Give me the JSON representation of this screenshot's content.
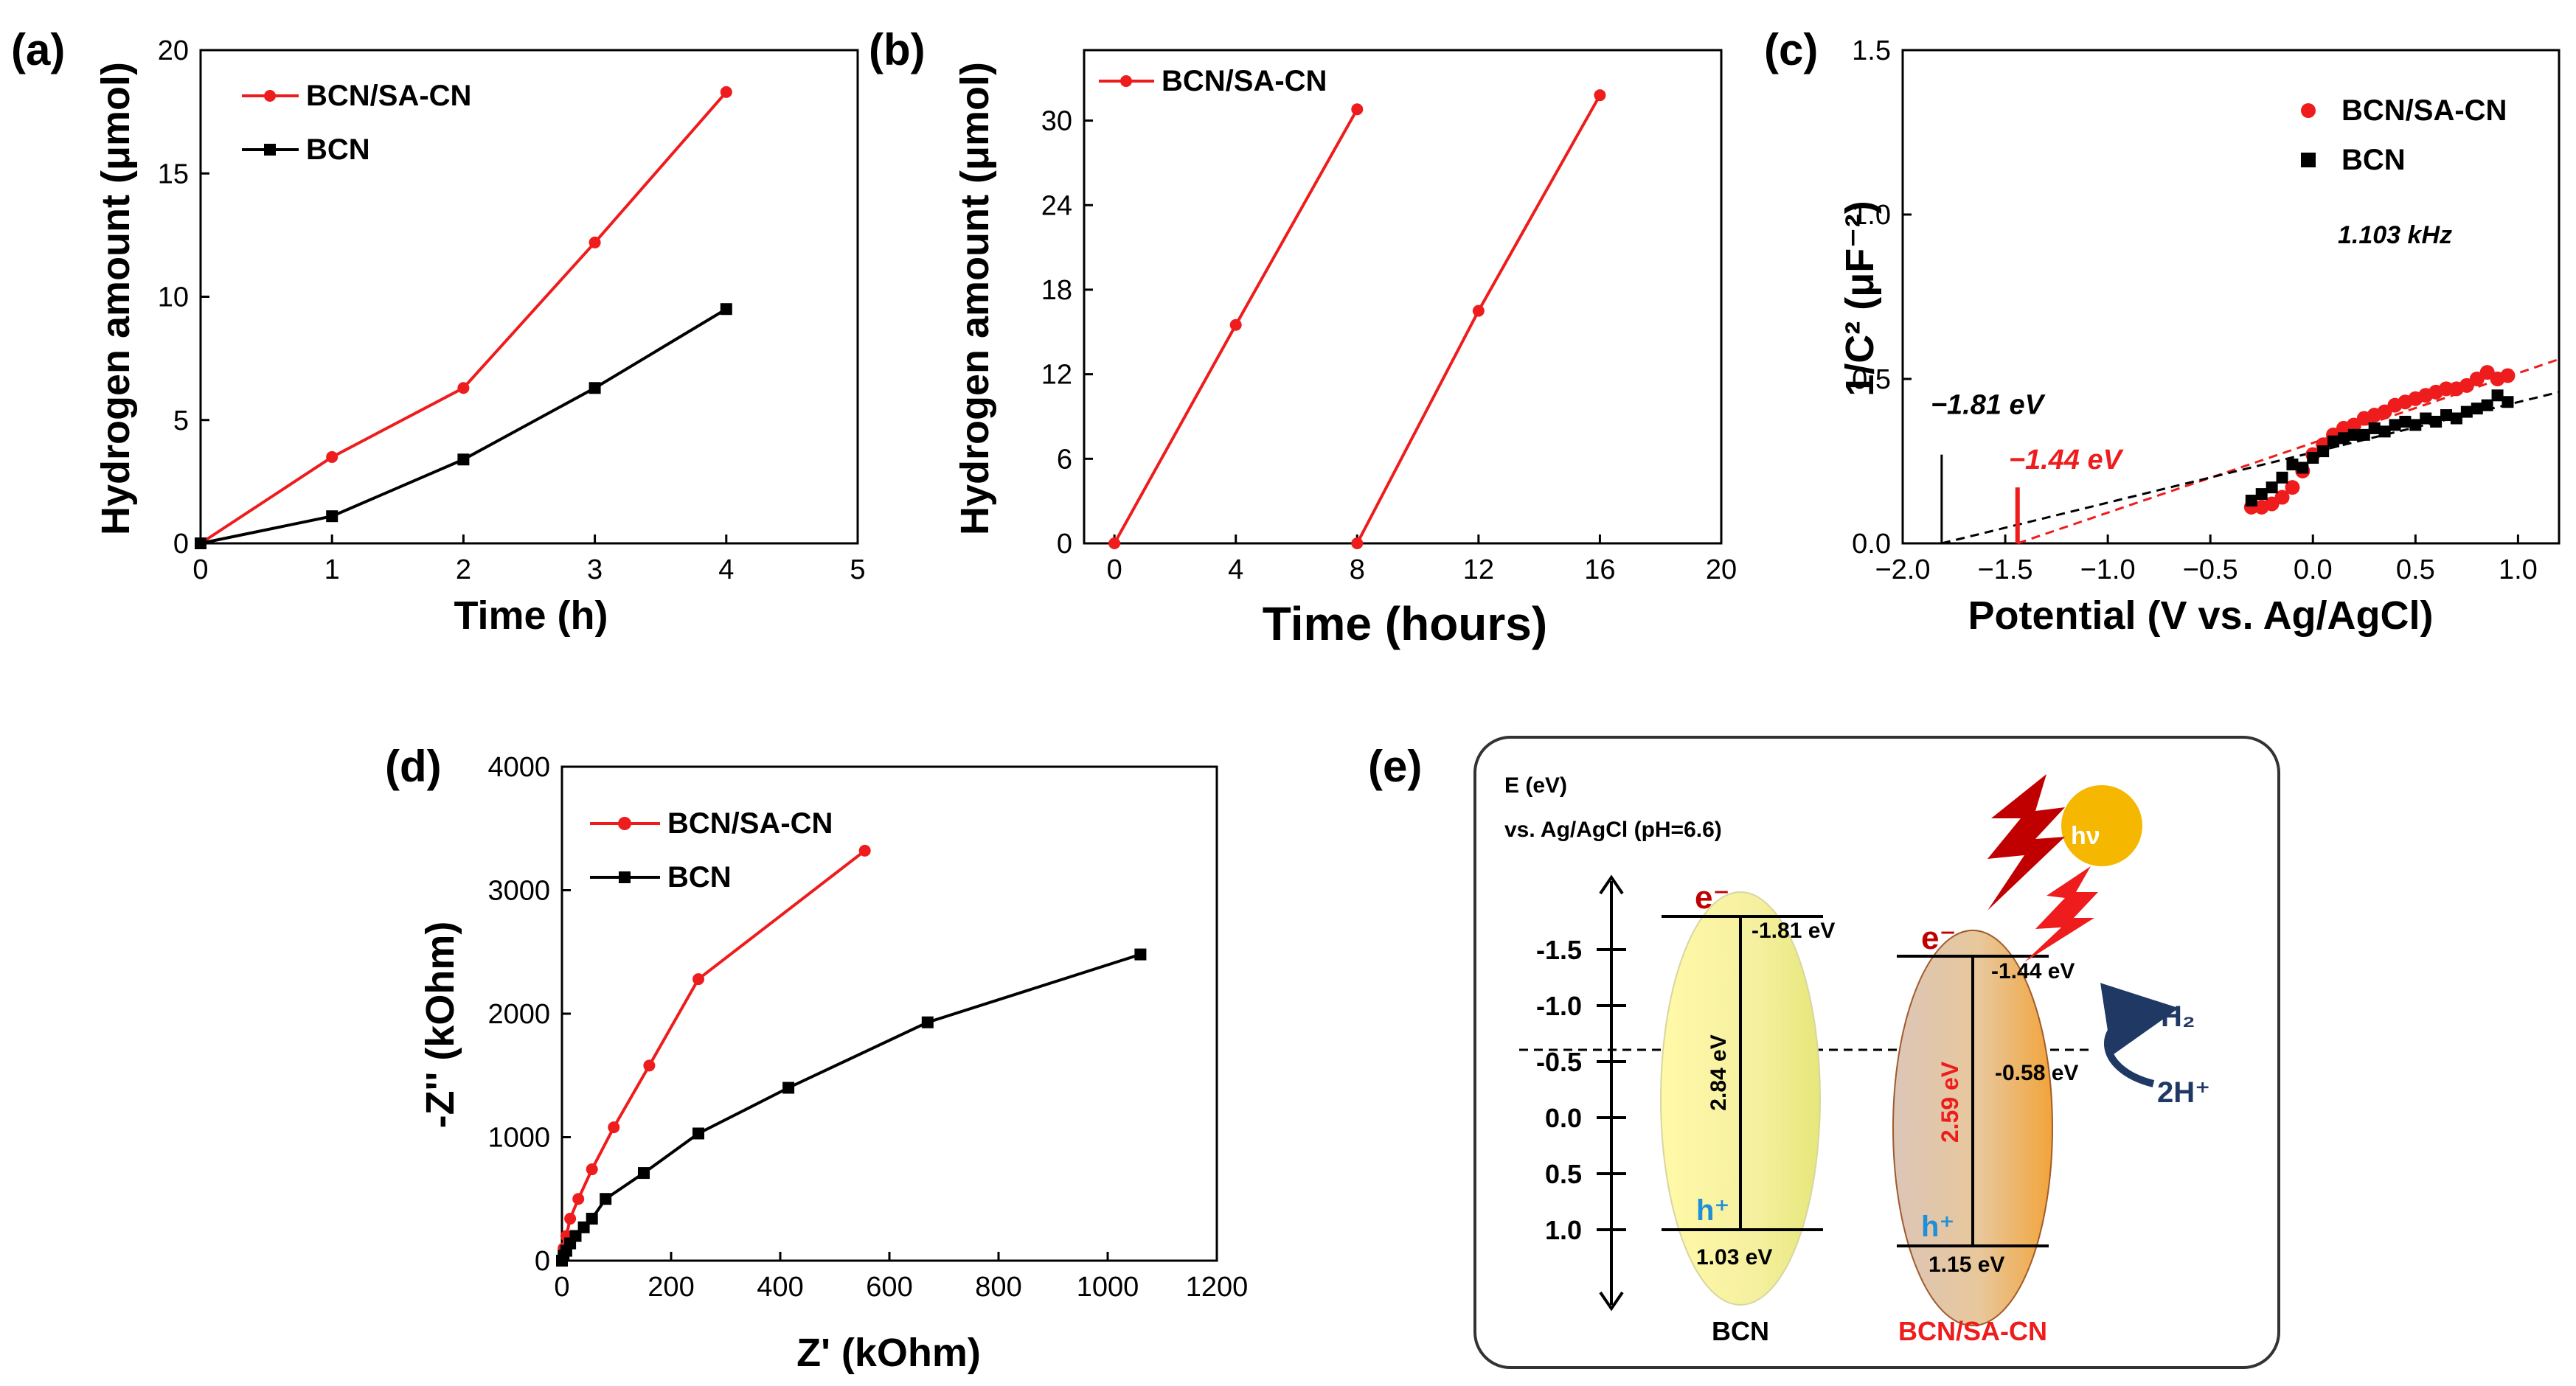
{
  "chart_data": [
    {
      "id": "a",
      "panel_label": "(a)",
      "type": "line",
      "xlabel": "Time (h)",
      "ylabel": "Hydrogen amount (μmol)",
      "xlim": [
        0,
        5
      ],
      "ylim": [
        0,
        20
      ],
      "xticks": [
        0,
        1,
        2,
        3,
        4,
        5
      ],
      "yticks": [
        0,
        5,
        10,
        15,
        20
      ],
      "legend_position": "top-left",
      "series": [
        {
          "name": "BCN/SA-CN",
          "color": "#ee1c1c",
          "marker": "circle",
          "x": [
            0,
            1,
            2,
            3,
            4
          ],
          "y": [
            0,
            3.5,
            6.3,
            12.2,
            18.3
          ]
        },
        {
          "name": "BCN",
          "color": "#000000",
          "marker": "square",
          "x": [
            0,
            1,
            2,
            3,
            4
          ],
          "y": [
            0,
            1.1,
            3.4,
            6.3,
            9.5
          ]
        }
      ]
    },
    {
      "id": "b",
      "panel_label": "(b)",
      "type": "line",
      "xlabel": "Time (hours)",
      "ylabel": "Hydrogen amount (μmol)",
      "xlim": [
        -1,
        20
      ],
      "ylim": [
        0,
        35
      ],
      "xticks": [
        0,
        4,
        8,
        12,
        16,
        20
      ],
      "yticks": [
        0,
        6,
        12,
        18,
        24,
        30
      ],
      "legend_position": "top-left",
      "series": [
        {
          "name": "BCN/SA-CN",
          "color": "#ee1c1c",
          "marker": "circle",
          "segments": [
            {
              "x": [
                0,
                4,
                8
              ],
              "y": [
                0,
                15.5,
                30.8
              ]
            },
            {
              "x": [
                8,
                12,
                16
              ],
              "y": [
                0,
                16.5,
                31.8
              ]
            }
          ]
        }
      ]
    },
    {
      "id": "c",
      "panel_label": "(c)",
      "type": "scatter",
      "xlabel": "Potential (V vs. Ag/AgCl)",
      "ylabel": "1/C² (μF⁻²)",
      "xlim": [
        -2.0,
        1.2
      ],
      "ylim": [
        0,
        1.5
      ],
      "xticks": [
        -2.0,
        -1.5,
        -1.0,
        -0.5,
        0.0,
        0.5,
        1.0
      ],
      "yticks": [
        0.0,
        0.5,
        1.0,
        1.5
      ],
      "legend_position": "top-right",
      "frequency_note": "1.103 kHz",
      "series": [
        {
          "name": "BCN/SA-CN",
          "color": "#ee1c1c",
          "marker": "circle",
          "x": [
            -0.3,
            -0.25,
            -0.2,
            -0.15,
            -0.1,
            -0.05,
            0.0,
            0.05,
            0.1,
            0.15,
            0.2,
            0.25,
            0.3,
            0.35,
            0.4,
            0.45,
            0.5,
            0.55,
            0.6,
            0.65,
            0.7,
            0.75,
            0.8,
            0.85,
            0.9,
            0.95
          ],
          "y": [
            0.11,
            0.11,
            0.12,
            0.14,
            0.17,
            0.22,
            0.27,
            0.3,
            0.33,
            0.35,
            0.36,
            0.38,
            0.39,
            0.4,
            0.42,
            0.43,
            0.44,
            0.45,
            0.46,
            0.47,
            0.47,
            0.48,
            0.5,
            0.52,
            0.5,
            0.51
          ]
        },
        {
          "name": "BCN",
          "color": "#000000",
          "marker": "square",
          "x": [
            -0.3,
            -0.25,
            -0.2,
            -0.15,
            -0.1,
            -0.05,
            0.0,
            0.05,
            0.1,
            0.15,
            0.2,
            0.25,
            0.3,
            0.35,
            0.4,
            0.45,
            0.5,
            0.55,
            0.6,
            0.65,
            0.7,
            0.75,
            0.8,
            0.85,
            0.9,
            0.95
          ],
          "y": [
            0.13,
            0.15,
            0.17,
            0.2,
            0.24,
            0.23,
            0.26,
            0.28,
            0.31,
            0.32,
            0.33,
            0.33,
            0.35,
            0.34,
            0.36,
            0.37,
            0.36,
            0.38,
            0.37,
            0.39,
            0.38,
            0.4,
            0.41,
            0.42,
            0.45,
            0.43
          ]
        }
      ],
      "fits": [
        {
          "name": "BCN/SA-CN fit",
          "color": "#ee1c1c",
          "x": [
            -1.44,
            1.2
          ],
          "y": [
            0,
            0.56
          ]
        },
        {
          "name": "BCN fit",
          "color": "#000000",
          "x": [
            -1.81,
            1.2
          ],
          "y": [
            0,
            0.46
          ]
        }
      ],
      "markers": [
        {
          "x": -1.81,
          "label": "-1.81 eV",
          "color": "#000000",
          "height": 0.27
        },
        {
          "x": -1.44,
          "label": "-1.44 eV",
          "color": "#ee1c1c",
          "height": 0.17
        }
      ]
    },
    {
      "id": "d",
      "panel_label": "(d)",
      "type": "line",
      "xlabel": "Z' (kOhm)",
      "ylabel": "-Z'' (kOhm)",
      "xlim": [
        0,
        1200
      ],
      "ylim": [
        0,
        4000
      ],
      "xticks": [
        0,
        200,
        400,
        600,
        800,
        1000,
        1200
      ],
      "yticks": [
        0,
        1000,
        2000,
        3000,
        4000
      ],
      "legend_position": "top-left",
      "series": [
        {
          "name": "BCN/SA-CN",
          "color": "#ee1c1c",
          "marker": "circle",
          "x": [
            0,
            3,
            8,
            15,
            30,
            55,
            95,
            160,
            250,
            555
          ],
          "y": [
            0,
            100,
            200,
            340,
            500,
            740,
            1080,
            1580,
            2280,
            3320
          ]
        },
        {
          "name": "BCN",
          "color": "#000000",
          "marker": "square",
          "x": [
            0,
            3,
            8,
            15,
            25,
            40,
            55,
            80,
            150,
            250,
            415,
            670,
            1060
          ],
          "y": [
            0,
            40,
            80,
            140,
            200,
            270,
            340,
            500,
            710,
            1030,
            1400,
            1930,
            2480
          ]
        }
      ]
    }
  ],
  "diagram_e": {
    "panel_label": "(e)",
    "axis_title_line1": "E (eV)",
    "axis_title_line2": "vs. Ag/AgCl (pH=6.6)",
    "axis_ticks": [
      "-1.5",
      "-1.0",
      "-0.5",
      "0.0",
      "0.5",
      "1.0"
    ],
    "bcn": {
      "name": "BCN",
      "cb_label": "-1.81 eV",
      "vb_label": "1.03 eV",
      "gap_label": "2.84 eV",
      "electron": "e⁻",
      "hole": "h⁺"
    },
    "bcnsa": {
      "name": "BCN/SA-CN",
      "cb_label": "-1.44 eV",
      "vb_label": "1.15 eV",
      "gap_label": "2.59 eV",
      "middle_label": "-0.58 eV",
      "electron": "e⁻",
      "hole": "h⁺"
    },
    "light_label": "hν",
    "product": "H₂",
    "reactant": "2H⁺",
    "colors": {
      "red": "#ee1c1c",
      "dark_red": "#c00000",
      "navy": "#1f3864",
      "sun": "#f5b700",
      "blue_h": "#1f8fd8"
    }
  }
}
